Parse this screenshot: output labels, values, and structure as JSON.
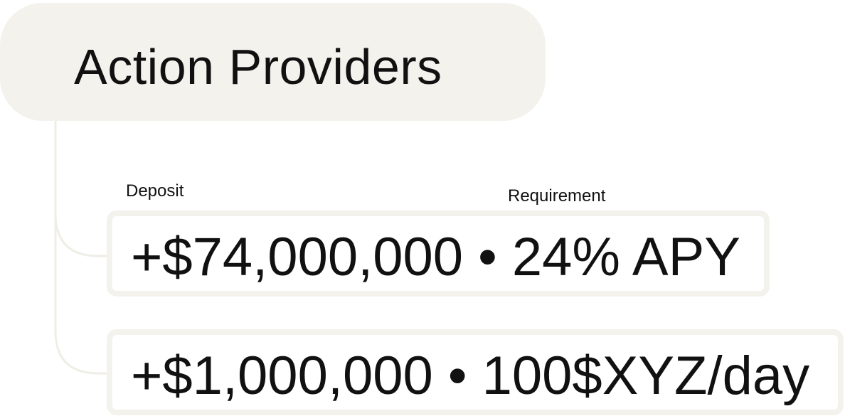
{
  "title": "Action Providers",
  "labels": {
    "deposit": "Deposit",
    "requirement": "Requirement"
  },
  "rows": [
    {
      "text": "+$74,000,000 • 24% APY"
    },
    {
      "text": "+$1,000,000 • 100$XYZ/day"
    }
  ],
  "colors": {
    "pill_background": "#f3f2ed",
    "border": "#f3f2ed",
    "connector": "#efeee6",
    "text": "#111111",
    "background": "#ffffff"
  }
}
